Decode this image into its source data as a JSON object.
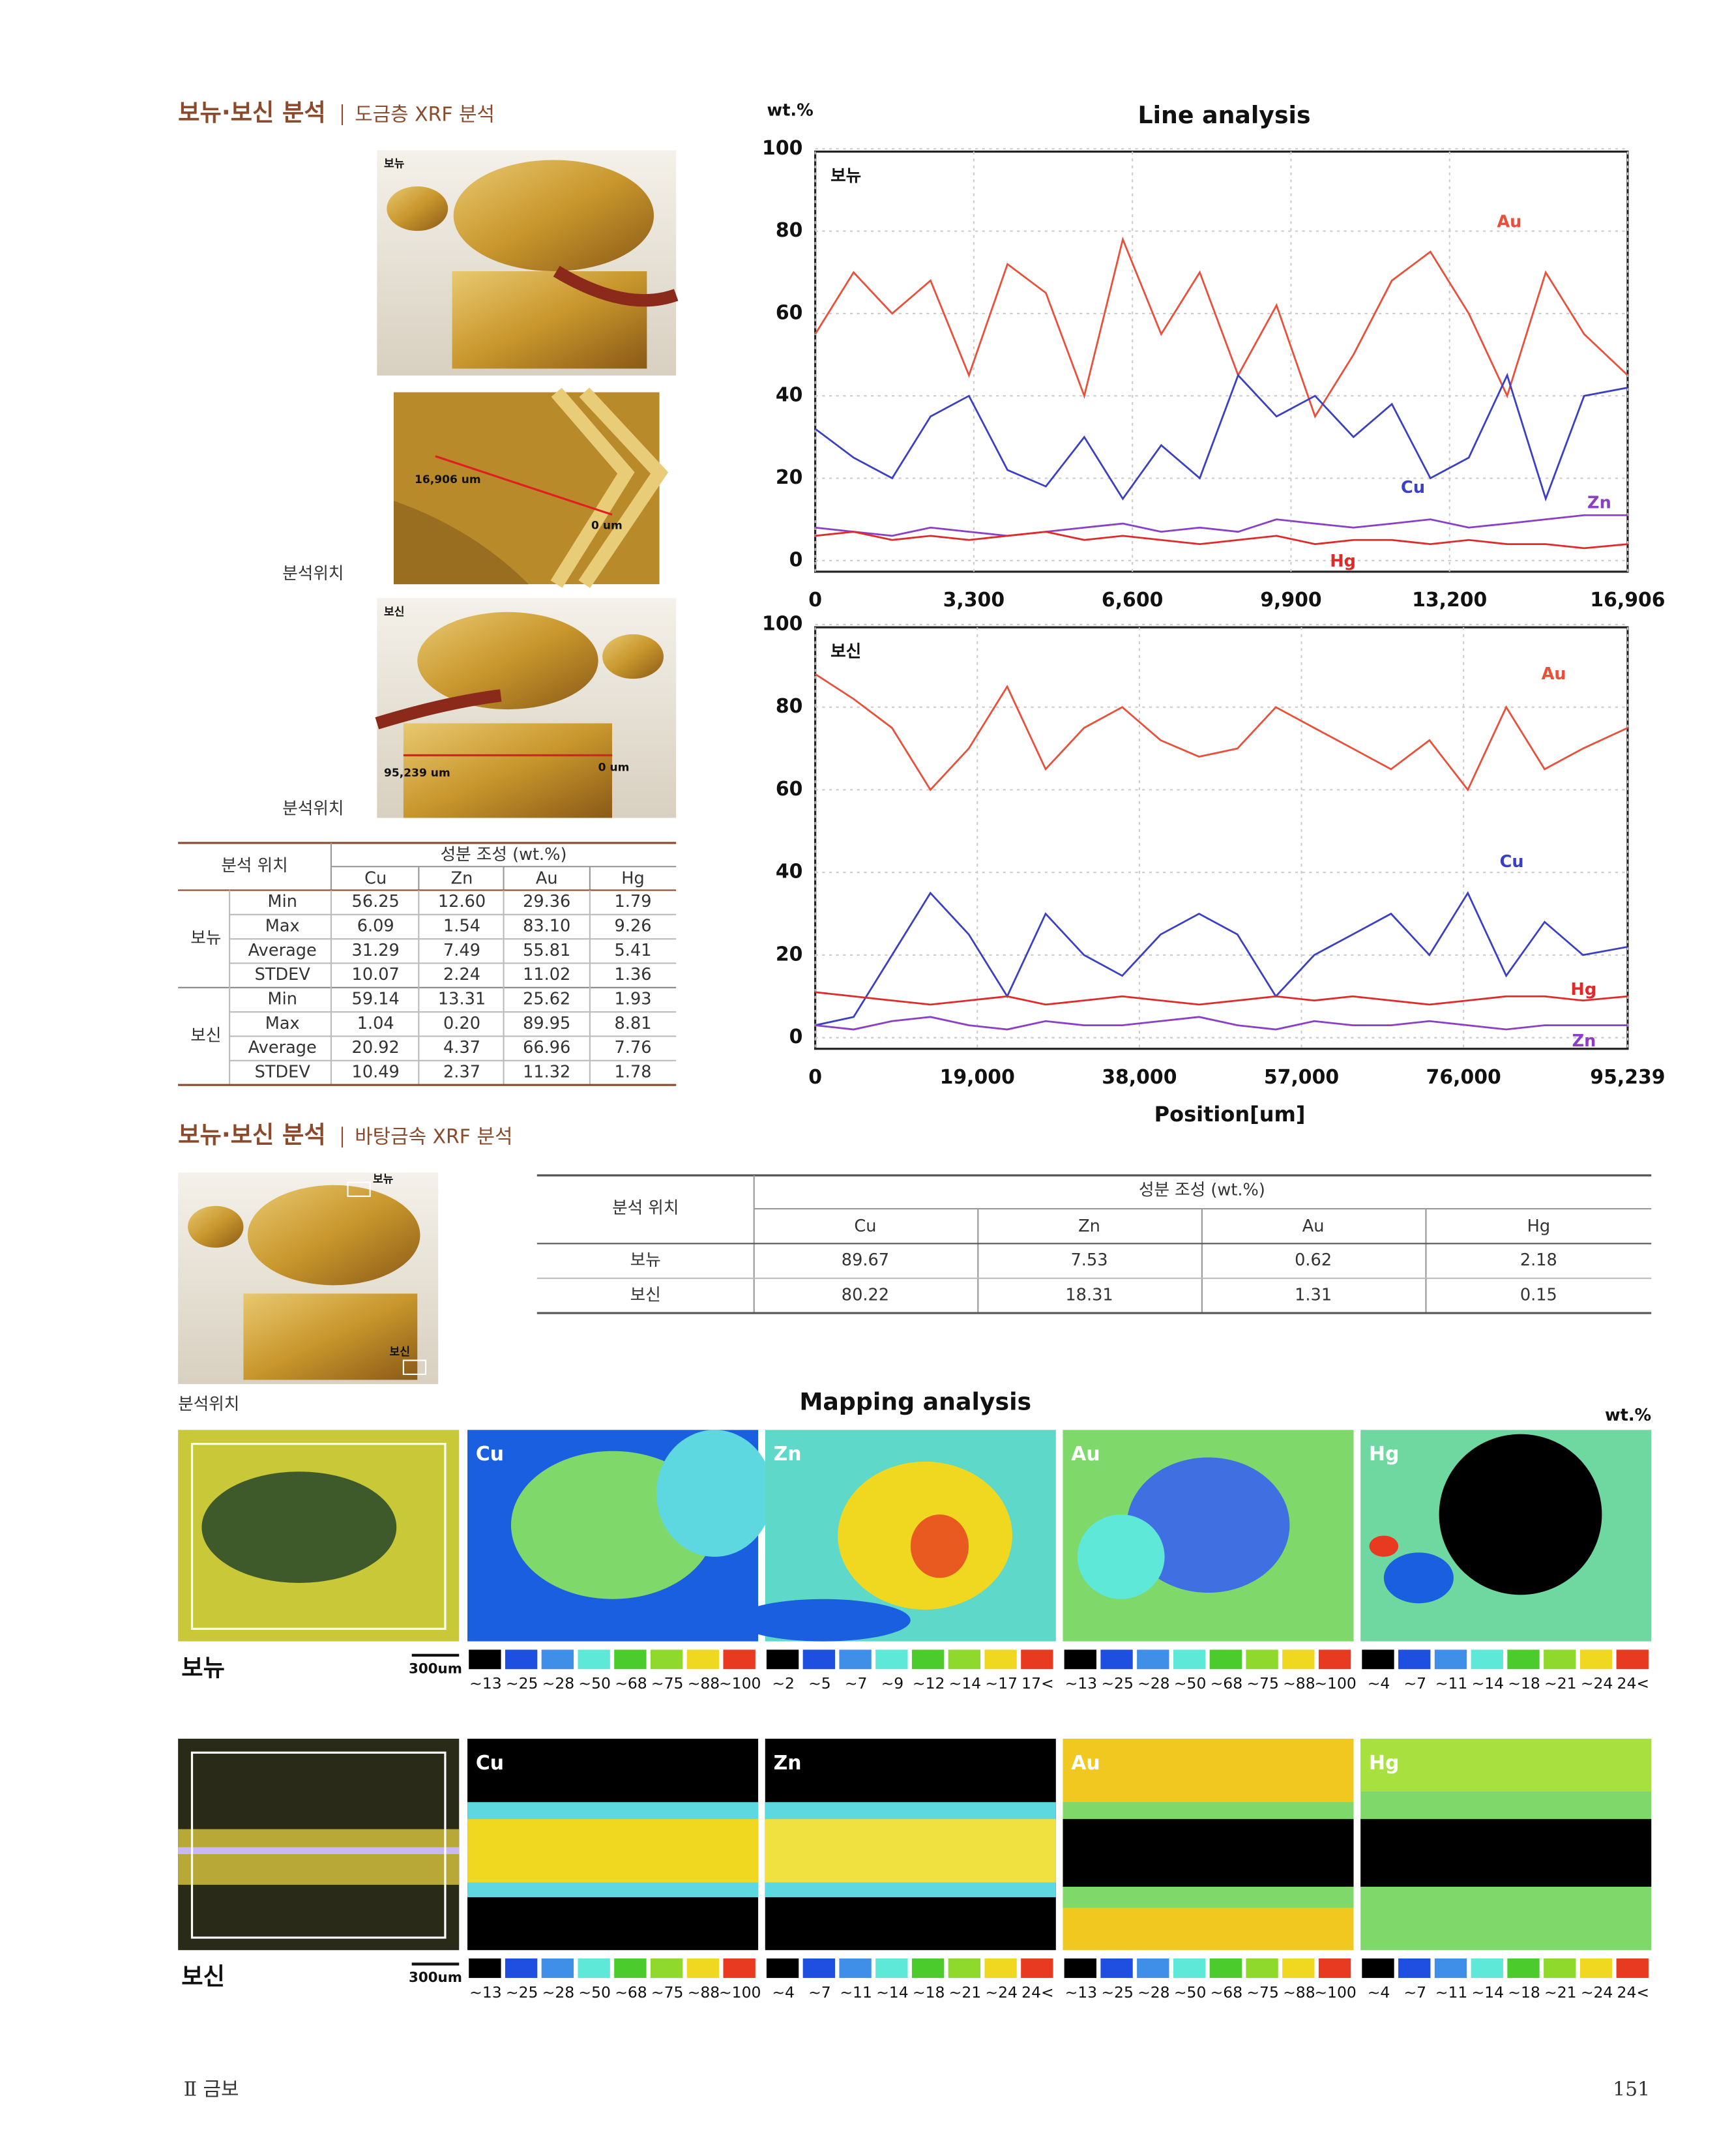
{
  "section1": {
    "title": "보뉴·보신 분석",
    "subtitle": "도금층 XRF 분석"
  },
  "photos": {
    "bonyu_label": "보뉴",
    "bonyu_length": "16,906 um",
    "bonyu_origin": "0 um",
    "caption_1": "분석위치",
    "bosin_label": "보신",
    "bosin_length": "95,239 um",
    "bosin_origin": "0 um",
    "caption_2": "분석위치"
  },
  "table1": {
    "header": {
      "position": "분석 위치",
      "composition": "성분 조성 (wt.%)",
      "elements": [
        "Cu",
        "Zn",
        "Au",
        "Hg"
      ]
    },
    "groups": [
      {
        "name": "보뉴",
        "rows": [
          {
            "stat": "Min",
            "values": [
              "56.25",
              "12.60",
              "29.36",
              "1.79"
            ]
          },
          {
            "stat": "Max",
            "values": [
              "6.09",
              "1.54",
              "83.10",
              "9.26"
            ]
          },
          {
            "stat": "Average",
            "values": [
              "31.29",
              "7.49",
              "55.81",
              "5.41"
            ]
          },
          {
            "stat": "STDEV",
            "values": [
              "10.07",
              "2.24",
              "11.02",
              "1.36"
            ]
          }
        ]
      },
      {
        "name": "보신",
        "rows": [
          {
            "stat": "Min",
            "values": [
              "59.14",
              "13.31",
              "25.62",
              "1.93"
            ]
          },
          {
            "stat": "Max",
            "values": [
              "1.04",
              "0.20",
              "89.95",
              "8.81"
            ]
          },
          {
            "stat": "Average",
            "values": [
              "20.92",
              "4.37",
              "66.96",
              "7.76"
            ]
          },
          {
            "stat": "STDEV",
            "values": [
              "10.49",
              "2.37",
              "11.32",
              "1.78"
            ]
          }
        ]
      }
    ]
  },
  "chart_data": [
    {
      "type": "line",
      "title": "Line analysis",
      "y_label": "wt.%",
      "label": "보뉴",
      "grid": true,
      "x": [
        0,
        800,
        1600,
        2400,
        3200,
        4000,
        4800,
        5600,
        6400,
        7200,
        8000,
        8800,
        9600,
        10400,
        11200,
        12000,
        12800,
        13600,
        14400,
        15200,
        16000,
        16906
      ],
      "xlim": [
        0,
        16906
      ],
      "xticks": [
        0,
        {
          "value": 3300,
          "label": "3,300"
        },
        {
          "value": 6600,
          "label": "6,600"
        },
        {
          "value": 9900,
          "label": "9,900"
        },
        {
          "value": 13200,
          "label": "13,200"
        },
        {
          "value": 16906,
          "label": "16,906"
        }
      ],
      "ylim": [
        0,
        100
      ],
      "yticks": [
        0,
        20,
        40,
        60,
        80,
        100
      ],
      "series": [
        {
          "name": "Au",
          "color": "#e8503a",
          "values": [
            55,
            70,
            60,
            68,
            45,
            72,
            65,
            40,
            78,
            55,
            70,
            45,
            62,
            35,
            50,
            68,
            75,
            60,
            40,
            70,
            55,
            45
          ]
        },
        {
          "name": "Cu",
          "color": "#3a3fc4",
          "values": [
            32,
            25,
            20,
            35,
            40,
            22,
            18,
            30,
            15,
            28,
            20,
            45,
            35,
            40,
            30,
            38,
            20,
            25,
            45,
            15,
            40,
            42
          ]
        },
        {
          "name": "Zn",
          "color": "#8a3fc4",
          "values": [
            8,
            7,
            6,
            8,
            7,
            6,
            7,
            8,
            9,
            7,
            8,
            7,
            10,
            9,
            8,
            9,
            10,
            8,
            9,
            10,
            11,
            11
          ]
        },
        {
          "name": "Hg",
          "color": "#e02a2a",
          "values": [
            6,
            7,
            5,
            6,
            5,
            6,
            7,
            5,
            6,
            5,
            4,
            5,
            6,
            4,
            5,
            5,
            4,
            5,
            4,
            4,
            3,
            4
          ]
        }
      ]
    },
    {
      "type": "line",
      "x_label": "Position[um]",
      "label": "보신",
      "grid": true,
      "x": [
        0,
        4500,
        9000,
        13500,
        18000,
        22500,
        27000,
        31500,
        36000,
        40500,
        45000,
        49500,
        54000,
        58500,
        63000,
        67500,
        72000,
        76500,
        81000,
        85500,
        90000,
        95239
      ],
      "xlim": [
        0,
        95239
      ],
      "xticks": [
        0,
        {
          "value": 19000,
          "label": "19,000"
        },
        {
          "value": 38000,
          "label": "38,000"
        },
        {
          "value": 57000,
          "label": "57,000"
        },
        {
          "value": 76000,
          "label": "76,000"
        },
        {
          "value": 95239,
          "label": "95,239"
        }
      ],
      "ylim": [
        0,
        100
      ],
      "yticks": [
        0,
        20,
        40,
        60,
        80,
        100
      ],
      "series": [
        {
          "name": "Au",
          "color": "#e8503a",
          "values": [
            88,
            82,
            75,
            60,
            70,
            85,
            65,
            75,
            80,
            72,
            68,
            70,
            80,
            75,
            70,
            65,
            72,
            60,
            80,
            65,
            70,
            75
          ]
        },
        {
          "name": "Cu",
          "color": "#3a3fc4",
          "values": [
            3,
            5,
            20,
            35,
            25,
            10,
            30,
            20,
            15,
            25,
            30,
            25,
            10,
            20,
            25,
            30,
            20,
            35,
            15,
            28,
            20,
            22
          ]
        },
        {
          "name": "Hg",
          "color": "#e02a2a",
          "values": [
            11,
            10,
            9,
            8,
            9,
            10,
            8,
            9,
            10,
            9,
            8,
            9,
            10,
            9,
            10,
            9,
            8,
            9,
            10,
            10,
            9,
            10
          ]
        },
        {
          "name": "Zn",
          "color": "#8a3fc4",
          "values": [
            3,
            2,
            4,
            5,
            3,
            2,
            4,
            3,
            3,
            4,
            5,
            3,
            2,
            4,
            3,
            3,
            4,
            3,
            2,
            3,
            3,
            3
          ]
        }
      ]
    }
  ],
  "section2": {
    "title": "보뉴·보신 분석",
    "subtitle": "바탕금속 XRF 분석"
  },
  "photo2": {
    "bonyu_label": "보뉴",
    "bosin_label": "보신",
    "caption": "분석위치"
  },
  "table2": {
    "header": {
      "position": "분석 위치",
      "composition": "성분 조성 (wt.%)",
      "elements": [
        "Cu",
        "Zn",
        "Au",
        "Hg"
      ]
    },
    "rows": [
      {
        "name": "보뉴",
        "values": [
          "89.67",
          "7.53",
          "0.62",
          "2.18"
        ]
      },
      {
        "name": "보신",
        "values": [
          "80.22",
          "18.31",
          "1.31",
          "0.15"
        ]
      }
    ]
  },
  "mapping": {
    "title": "Mapping analysis",
    "unit": "wt.%",
    "rows": [
      {
        "name": "보뉴",
        "scale": "300um",
        "maps": [
          {
            "element": "Cu",
            "legend": [
              "~13",
              "~25",
              "~28",
              "~50",
              "~68",
              "~75",
              "~88",
              "~100"
            ]
          },
          {
            "element": "Zn",
            "legend": [
              "~2",
              "~5",
              "~7",
              "~9",
              "~12",
              "~14",
              "~17",
              "17<"
            ]
          },
          {
            "element": "Au",
            "legend": [
              "~13",
              "~25",
              "~28",
              "~50",
              "~68",
              "~75",
              "~88",
              "~100"
            ]
          },
          {
            "element": "Hg",
            "legend": [
              "~4",
              "~7",
              "~11",
              "~14",
              "~18",
              "~21",
              "~24",
              "24<"
            ]
          }
        ]
      },
      {
        "name": "보신",
        "scale": "300um",
        "maps": [
          {
            "element": "Cu",
            "legend": [
              "~13",
              "~25",
              "~28",
              "~50",
              "~68",
              "~75",
              "~88",
              "~100"
            ]
          },
          {
            "element": "Zn",
            "legend": [
              "~4",
              "~7",
              "~11",
              "~14",
              "~18",
              "~21",
              "~24",
              "24<"
            ]
          },
          {
            "element": "Au",
            "legend": [
              "~13",
              "~25",
              "~28",
              "~50",
              "~68",
              "~75",
              "~88",
              "~100"
            ]
          },
          {
            "element": "Hg",
            "legend": [
              "~4",
              "~7",
              "~11",
              "~14",
              "~18",
              "~21",
              "~24",
              "24<"
            ]
          }
        ]
      }
    ]
  },
  "footer": {
    "section": "Ⅱ 금보",
    "page": "151"
  }
}
